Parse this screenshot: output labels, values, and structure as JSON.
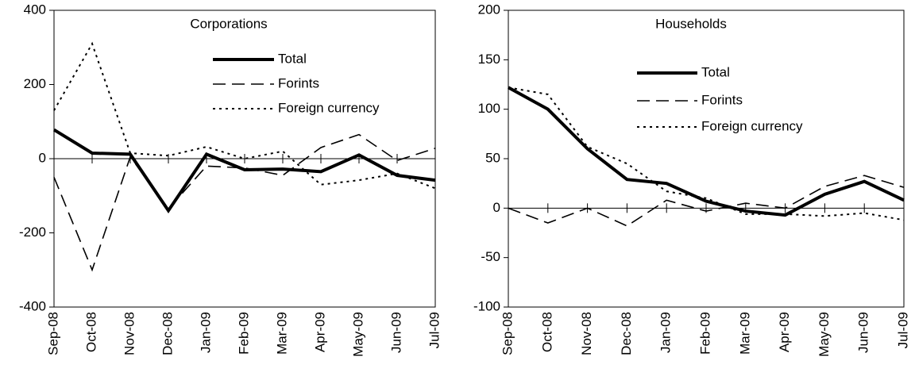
{
  "chart_data": [
    {
      "type": "line",
      "title": "Corporations",
      "categories": [
        "Sep-08",
        "Oct-08",
        "Nov-08",
        "Dec-08",
        "Jan-09",
        "Feb-09",
        "Mar-09",
        "Apr-09",
        "May-09",
        "Jun-09",
        "Jul-09"
      ],
      "ylim": [
        -400,
        400
      ],
      "yticks": [
        -400,
        -200,
        0,
        200,
        400
      ],
      "series": [
        {
          "name": "Total",
          "color": "#000000",
          "style": "solid",
          "values": [
            78,
            15,
            12,
            -140,
            12,
            -30,
            -28,
            -35,
            10,
            -45,
            -58
          ]
        },
        {
          "name": "Forints",
          "color": "#000000",
          "style": "dash",
          "values": [
            -50,
            -300,
            5,
            -135,
            -20,
            -25,
            -45,
            30,
            65,
            -5,
            28
          ]
        },
        {
          "name": "Foreign currency",
          "color": "#000000",
          "style": "dot",
          "values": [
            130,
            310,
            15,
            8,
            32,
            0,
            20,
            -70,
            -58,
            -40,
            -80
          ]
        }
      ]
    },
    {
      "type": "line",
      "title": "Households",
      "categories": [
        "Sep-08",
        "Oct-08",
        "Nov-08",
        "Dec-08",
        "Jan-09",
        "Feb-09",
        "Mar-09",
        "Apr-09",
        "May-09",
        "Jun-09",
        "Jul-09"
      ],
      "ylim": [
        -100,
        200
      ],
      "yticks": [
        -100,
        -50,
        0,
        50,
        100,
        150,
        200
      ],
      "series": [
        {
          "name": "Total",
          "color": "#000000",
          "style": "solid",
          "values": [
            122,
            100,
            60,
            29,
            25,
            7,
            -3,
            -7,
            14,
            27,
            8
          ]
        },
        {
          "name": "Forints",
          "color": "#000000",
          "style": "dash",
          "values": [
            0,
            -15,
            0,
            -18,
            8,
            -3,
            5,
            0,
            22,
            33,
            21
          ]
        },
        {
          "name": "Foreign currency",
          "color": "#000000",
          "style": "dot",
          "values": [
            122,
            115,
            62,
            45,
            17,
            10,
            -6,
            -6,
            -8,
            -5,
            -12
          ]
        }
      ]
    }
  ]
}
